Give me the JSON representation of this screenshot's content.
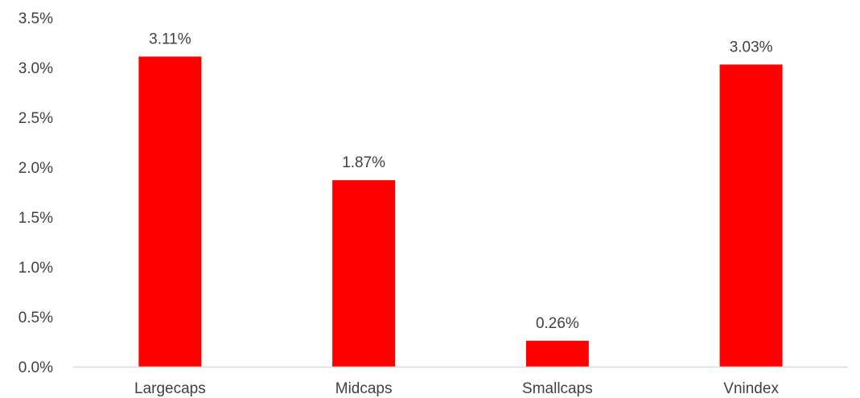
{
  "chart_data": {
    "type": "bar",
    "categories": [
      "Largecaps",
      "Midcaps",
      "Smallcaps",
      "Vnindex"
    ],
    "values": [
      3.11,
      1.87,
      0.26,
      3.03
    ],
    "data_labels": [
      "3.11%",
      "1.87%",
      "0.26%",
      "3.03%"
    ],
    "y_ticks": [
      0,
      0.5,
      1.0,
      1.5,
      2.0,
      2.5,
      3.0,
      3.5
    ],
    "y_tick_labels": [
      "0.0%",
      "0.5%",
      "1.0%",
      "1.5%",
      "2.0%",
      "2.5%",
      "3.0%",
      "3.5%"
    ],
    "ylim": [
      0,
      3.5
    ],
    "grid": false,
    "legend": "none",
    "colors": {
      "bar": "#ff0000",
      "axis": "#d9d9d9",
      "text": "#404040"
    }
  }
}
